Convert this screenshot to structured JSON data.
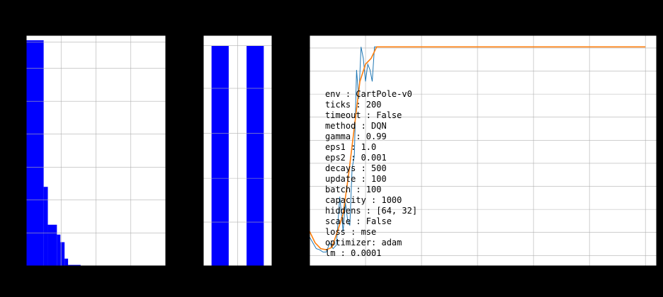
{
  "chart_data": [
    {
      "type": "bar",
      "histogram": true,
      "xlim": [
        0,
        200
      ],
      "ylim": [
        0,
        7
      ],
      "grid": true,
      "bar_color": "#0000ff",
      "bins": [
        {
          "x0": 0,
          "x1": 25,
          "value": 6.85
        },
        {
          "x0": 25,
          "x1": 31,
          "value": 2.4
        },
        {
          "x0": 31,
          "x1": 44,
          "value": 1.25
        },
        {
          "x0": 44,
          "x1": 49,
          "value": 0.95
        },
        {
          "x0": 49,
          "x1": 55,
          "value": 0.72
        },
        {
          "x0": 55,
          "x1": 60,
          "value": 0.22
        },
        {
          "x0": 60,
          "x1": 78,
          "value": 0.03
        }
      ]
    },
    {
      "type": "bar",
      "histogram": true,
      "xlim": [
        0,
        1
      ],
      "ylim": [
        0,
        1
      ],
      "grid": true,
      "bar_color": "#0000ff",
      "bins": [
        {
          "x0": 0.12,
          "x1": 0.37,
          "value": 0.955
        },
        {
          "x0": 0.63,
          "x1": 0.88,
          "value": 0.955
        }
      ]
    },
    {
      "type": "line",
      "xlim": [
        0,
        310
      ],
      "ylim": [
        0,
        200
      ],
      "grid": true,
      "x_gridlines": [
        0,
        50,
        100,
        150,
        200,
        250,
        300
      ],
      "y_gridlines": [
        9,
        29,
        49,
        69,
        89,
        109,
        129,
        149,
        169,
        189
      ],
      "series": [
        {
          "color": "#1f77b4",
          "x": [
            0,
            3,
            6,
            9,
            12,
            15,
            18,
            21,
            24,
            27,
            30,
            32,
            34,
            36,
            38,
            40,
            42,
            44,
            46,
            48,
            50,
            52,
            54,
            56,
            58,
            60,
            62,
            64,
            66,
            68,
            70,
            300
          ],
          "y": [
            25,
            20,
            15,
            14,
            12,
            12,
            20,
            15,
            18,
            60,
            30,
            55,
            40,
            35,
            85,
            95,
            170,
            145,
            190,
            180,
            160,
            175,
            170,
            160,
            190,
            190,
            190,
            190,
            190,
            190,
            190,
            190
          ]
        },
        {
          "color": "#ff7f0e",
          "x": [
            0,
            5,
            10,
            15,
            20,
            25,
            30,
            35,
            40,
            45,
            50,
            55,
            60,
            65,
            70,
            300
          ],
          "y": [
            30,
            20,
            15,
            14,
            16,
            30,
            45,
            80,
            120,
            160,
            175,
            180,
            190,
            190,
            190,
            190
          ]
        }
      ]
    }
  ],
  "config_lines": [
    "env      : CartPole-v0",
    "ticks    : 200",
    "timeout  : False",
    "method   : DQN",
    "gamma    : 0.99",
    "eps1     : 1.0",
    "eps2     : 0.001",
    "decays   : 500",
    "update   : 100",
    "batch    : 100",
    "capacity : 1000",
    "hiddens  : [64, 32]",
    "scale    : False",
    "loss     : mse",
    "optimizer: adam",
    "lm       : 0.0001"
  ],
  "colors": {
    "background": "#000000",
    "panel": "#ffffff",
    "grid": "#b0b0b0",
    "hist_bar": "#0000ff"
  }
}
